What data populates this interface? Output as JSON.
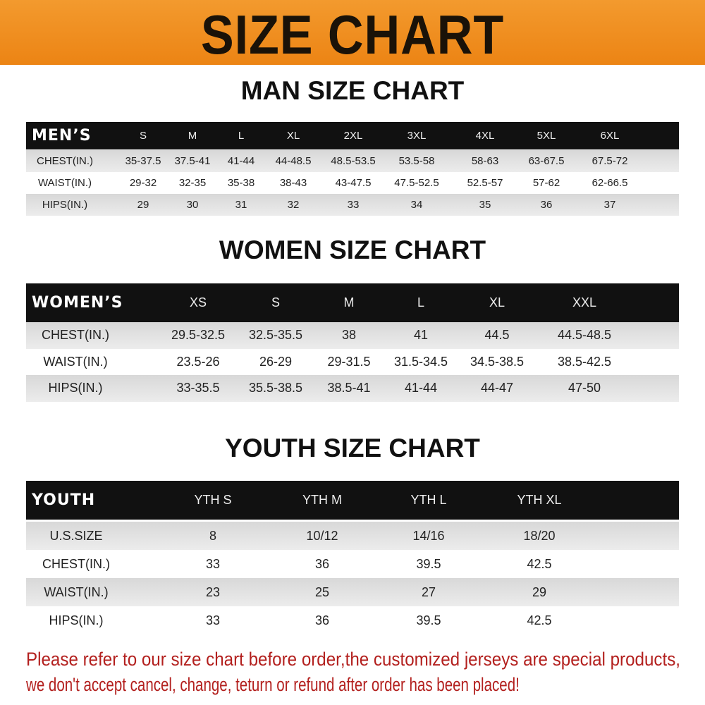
{
  "banner": {
    "title": "SIZE CHART",
    "color": "#ee8a1a"
  },
  "men": {
    "title": "MAN SIZE CHART",
    "header": "MEN’S",
    "sizes": [
      "S",
      "M",
      "L",
      "XL",
      "2XL",
      "3XL",
      "4XL",
      "5XL",
      "6XL"
    ],
    "rows": [
      {
        "label": "CHEST(IN.)",
        "values": [
          "35-37.5",
          "37.5-41",
          "41-44",
          "44-48.5",
          "48.5-53.5",
          "53.5-58",
          "58-63",
          "63-67.5",
          "67.5-72"
        ]
      },
      {
        "label": "WAIST(IN.)",
        "values": [
          "29-32",
          "32-35",
          "35-38",
          "38-43",
          "43-47.5",
          "47.5-52.5",
          "52.5-57",
          "57-62",
          "62-66.5"
        ]
      },
      {
        "label": "HIPS(IN.)",
        "values": [
          "29",
          "30",
          "31",
          "32",
          "33",
          "34",
          "35",
          "36",
          "37"
        ]
      }
    ]
  },
  "women": {
    "title": "WOMEN SIZE CHART",
    "header": "WOMEN’S",
    "sizes": [
      "XS",
      "S",
      "M",
      "L",
      "XL",
      "XXL"
    ],
    "rows": [
      {
        "label": "CHEST(IN.)",
        "values": [
          "29.5-32.5",
          "32.5-35.5",
          "38",
          "41",
          "44.5",
          "44.5-48.5"
        ]
      },
      {
        "label": "WAIST(IN.)",
        "values": [
          "23.5-26",
          "26-29",
          "29-31.5",
          "31.5-34.5",
          "34.5-38.5",
          "38.5-42.5"
        ]
      },
      {
        "label": "HIPS(IN.)",
        "values": [
          "33-35.5",
          "35.5-38.5",
          "38.5-41",
          "41-44",
          "44-47",
          "47-50"
        ]
      }
    ]
  },
  "youth": {
    "title": "YOUTH SIZE CHART",
    "header": "YOUTH",
    "sizes": [
      "YTH S",
      "YTH M",
      "YTH L",
      "YTH XL"
    ],
    "rows": [
      {
        "label": "U.S.SIZE",
        "values": [
          "8",
          "10/12",
          "14/16",
          "18/20"
        ]
      },
      {
        "label": "CHEST(IN.)",
        "values": [
          "33",
          "36",
          "39.5",
          "42.5"
        ]
      },
      {
        "label": "WAIST(IN.)",
        "values": [
          "23",
          "25",
          "27",
          "29"
        ]
      },
      {
        "label": "HIPS(IN.)",
        "values": [
          "33",
          "36",
          "39.5",
          "42.5"
        ]
      }
    ]
  },
  "notice": {
    "line1": "Please refer to our size chart before order,the customized jerseys are special products,",
    "line2": "we don't accept cancel, change, teturn or refund after order has been placed!",
    "color": "#b3201e"
  }
}
